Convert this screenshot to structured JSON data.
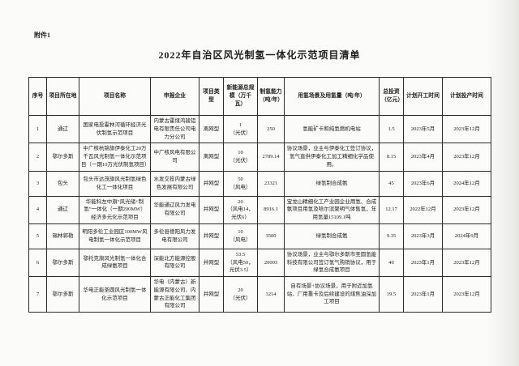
{
  "page": {
    "attachment_label": "附件1",
    "title": "2022年自治区风光制氢一体化示范项目清单"
  },
  "table": {
    "headers": [
      "序号",
      "项目所在地",
      "项目名称",
      "申报企业",
      "项目类型",
      "新能源总规模（万千瓦）",
      "制氢能力（吨/年）",
      "用氢场景及用氢量（吨/年）",
      "总投资（亿元）",
      "计划开工时间",
      "计划投产时间"
    ],
    "rows": [
      [
        "1",
        "通辽",
        "国家电投霍林河循环经济光伏制氢示范项目",
        "内蒙古霍煤鸿骏铝电有限责任公司电力分公司",
        "离网型",
        "1\n（光伏）",
        "250",
        "氢能矿卡和纯氢燃机电站",
        "1.5",
        "2023年5月",
        "2023年12月"
      ],
      [
        "2",
        "鄂尔多斯",
        "中广核杭锦旗伊泰化工20万千瓦风光制氢一体化示范项目（一期10万光伏制氢项目）",
        "中广核风电有限公司",
        "离网型",
        "10\n（光伏）",
        "2789.14",
        "协议场景，业主与伊泰化工签订协议，氢气直供伊泰化工加工精细化学品使用。",
        "8.15",
        "2023年4月",
        "2023年12月"
      ],
      [
        "3",
        "包头",
        "包头市达茂旗风光制氢绿色化工一体化项目",
        "水发交投内蒙古绿色发展有限公司",
        "并网型",
        "50\n（风电）",
        "23321",
        "绿氢制合成氨",
        "45",
        "2023年6月",
        "2024年12月"
      ],
      [
        "4",
        "通辽",
        "华能科左中旗“风光储+制氢”一体化（一期200MW）经济多元化示范项目",
        "华能通辽风力发电有限公司",
        "并网型",
        "20\n（风电14，光伏6）",
        "8916.1",
        "宝龙山精细化工产业园企业用氢、合成氨项目用氢及哈尔滨聚明气体售氢，年用氢量15109.1吨",
        "12.17",
        "2022年12月",
        "2023年12月"
      ],
      [
        "5",
        "锡林郭勒",
        "明阳多伦工业园区100MW风电制氢一体化示范项目",
        "多伦县德阳风力发电有限公司",
        "并网型",
        "10\n（风电）",
        "3500",
        "绿氢制合成氨",
        "9.35",
        "2023年3月",
        "2024年9月"
      ],
      [
        "6",
        "鄂尔多斯",
        "鄂托克旗风光制氢一体化合成绿氨项目",
        "深能北方能源控股有限公司",
        "并网型",
        "53.5\n（风电50，光伏3.5）",
        "20003",
        "协议场景，业主与鄂尔多斯市圣圆氢能科技有限公司签订氢气购销协议，用于绿氢合成氨项目",
        "40",
        "2023年1月",
        "2023年12月"
      ],
      [
        "7",
        "鄂尔多斯",
        "华电正能圣圆风光制氢一体化示范项目",
        "华电（内蒙古）新能源有限公司、内蒙古正能化工集团有限公司",
        "并网型",
        "20\n（光伏）",
        "3214",
        "自有场景+协议场景，用于附近加氢站、厂用重卡及后续建设的煤焦油深加工项目",
        "19.5",
        "2023年1月",
        "2023年12月"
      ]
    ]
  }
}
